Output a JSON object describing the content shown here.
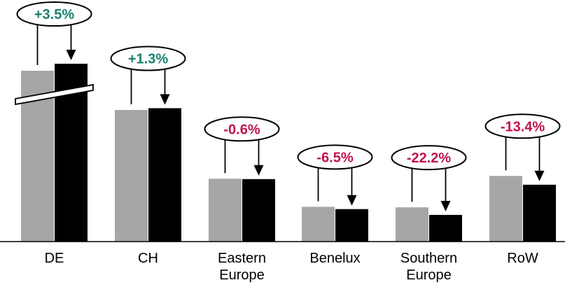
{
  "chart_data": {
    "type": "bar",
    "categories": [
      {
        "lines": [
          "DE"
        ]
      },
      {
        "lines": [
          "CH"
        ]
      },
      {
        "lines": [
          "Eastern",
          "Europe"
        ]
      },
      {
        "lines": [
          "Benelux"
        ]
      },
      {
        "lines": [
          "Southern",
          "Europe"
        ]
      },
      {
        "lines": [
          "RoW"
        ]
      }
    ],
    "series": [
      {
        "color": "#a6a6a6",
        "values": [
          100,
          75,
          35.8,
          19.8,
          19.5,
          37.4
        ]
      },
      {
        "color": "#000000",
        "values": [
          103.5,
          76.0,
          35.6,
          18.5,
          15.2,
          32.4
        ]
      }
    ],
    "changes": [
      "+3.5%",
      "+1.3%",
      "-0.6%",
      "-6.5%",
      "-22.2%",
      "-13.4%"
    ],
    "change_colors": {
      "positive": "#1a8070",
      "negative": "#c0134a"
    },
    "axis_break_on": "DE",
    "ylim": [
      0,
      103.5
    ]
  }
}
